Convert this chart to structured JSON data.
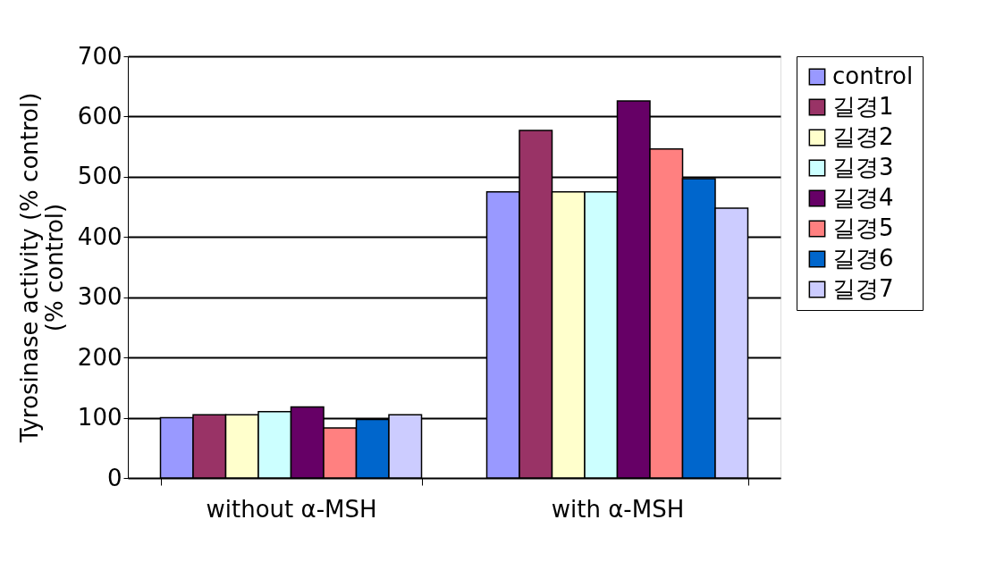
{
  "chart_data": {
    "type": "bar",
    "ylabel": "Tyrosinase activity (% control)\n(% control)",
    "categories": [
      "without α-MSH",
      "with α-MSH"
    ],
    "series": [
      {
        "name": "control",
        "color": "#9999ff",
        "values": [
          100,
          475
        ]
      },
      {
        "name": "길경1",
        "color": "#993366",
        "values": [
          105,
          577
        ]
      },
      {
        "name": "길경2",
        "color": "#ffffcc",
        "values": [
          105,
          475
        ]
      },
      {
        "name": "길경3",
        "color": "#ccffff",
        "values": [
          110,
          475
        ]
      },
      {
        "name": "길경4",
        "color": "#660066",
        "values": [
          118,
          626
        ]
      },
      {
        "name": "길경5",
        "color": "#ff8080",
        "values": [
          83,
          546
        ]
      },
      {
        "name": "길경6",
        "color": "#0066cc",
        "values": [
          97,
          497
        ]
      },
      {
        "name": "길경7",
        "color": "#ccccff",
        "values": [
          105,
          448
        ]
      }
    ],
    "ylim": [
      0,
      700
    ],
    "yticks": [
      0,
      100,
      200,
      300,
      400,
      500,
      600,
      700
    ],
    "grid": "y",
    "legend": "right"
  }
}
